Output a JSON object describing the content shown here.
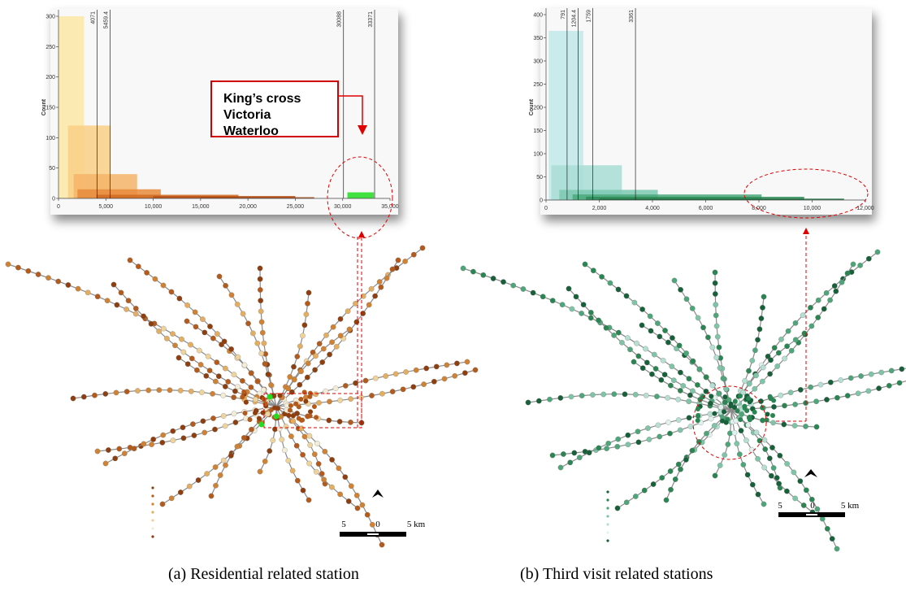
{
  "chart_data": [
    {
      "type": "histogram",
      "caption": "(a)  Residential related station",
      "ylabel": "Count",
      "xlim": [
        0,
        35000
      ],
      "ylim": [
        0,
        300
      ],
      "xticks": [
        0,
        {
          "value": 5000,
          "label": "5,000"
        },
        {
          "value": 10000,
          "label": "10,000"
        },
        {
          "value": 15000,
          "label": "15,000"
        },
        {
          "value": 20000,
          "label": "20,000"
        },
        {
          "value": 25000,
          "label": "25,000"
        },
        {
          "value": 30000,
          "label": "30,000"
        },
        {
          "value": 35000,
          "label": "35,000"
        }
      ],
      "yticks": [
        0,
        50,
        100,
        150,
        200,
        250,
        300
      ],
      "breaks": [
        4071,
        5459.4,
        30088,
        33371
      ],
      "bars": [
        {
          "start": 0,
          "end": 2700,
          "value": 300,
          "color": "#fbe7a6"
        },
        {
          "start": 1000,
          "end": 5500,
          "value": 120,
          "color": "#f9cf86"
        },
        {
          "start": 1600,
          "end": 8300,
          "value": 40,
          "color": "#f5b468"
        },
        {
          "start": 2000,
          "end": 10800,
          "value": 15,
          "color": "#e88b3c"
        },
        {
          "start": 4000,
          "end": 19000,
          "value": 6,
          "color": "#d06b22"
        },
        {
          "start": 10000,
          "end": 25000,
          "value": 4,
          "color": "#b9531a"
        },
        {
          "start": 15000,
          "end": 27000,
          "value": 2,
          "color": "#a34414"
        },
        {
          "start": 30500,
          "end": 33300,
          "value": 10,
          "color": "#22dd22"
        }
      ],
      "annotation": [
        "King’s cross",
        "Victoria",
        "Waterloo"
      ],
      "scale_labels": [
        "5",
        "0",
        "5 km"
      ]
    },
    {
      "type": "histogram",
      "caption": "(b) Third visit related stations",
      "ylabel": "Count",
      "xlim": [
        0,
        12000
      ],
      "ylim": [
        0,
        400
      ],
      "xticks": [
        0,
        {
          "value": 2000,
          "label": "2,000"
        },
        {
          "value": 4000,
          "label": "4,000"
        },
        {
          "value": 6000,
          "label": "6,000"
        },
        {
          "value": 8000,
          "label": "8,000"
        },
        {
          "value": 10000,
          "label": "10,000"
        },
        {
          "value": 12000,
          "label": "12,000"
        }
      ],
      "yticks": [
        0,
        50,
        100,
        150,
        200,
        250,
        300,
        350,
        400
      ],
      "breaks": [
        791,
        1204.4,
        1759,
        3361
      ],
      "bars": [
        {
          "start": 100,
          "end": 1400,
          "value": 365,
          "color": "#c2e9e9"
        },
        {
          "start": 200,
          "end": 2850,
          "value": 75,
          "color": "#a9ddd6"
        },
        {
          "start": 500,
          "end": 4200,
          "value": 22,
          "color": "#7cc9b2"
        },
        {
          "start": 1000,
          "end": 8100,
          "value": 12,
          "color": "#4aa87a"
        },
        {
          "start": 1500,
          "end": 9700,
          "value": 7,
          "color": "#2e8b57"
        },
        {
          "start": 2000,
          "end": 11200,
          "value": 3,
          "color": "#1f6e3f"
        }
      ],
      "scale_labels": [
        "5",
        "0",
        "5 km"
      ]
    }
  ]
}
